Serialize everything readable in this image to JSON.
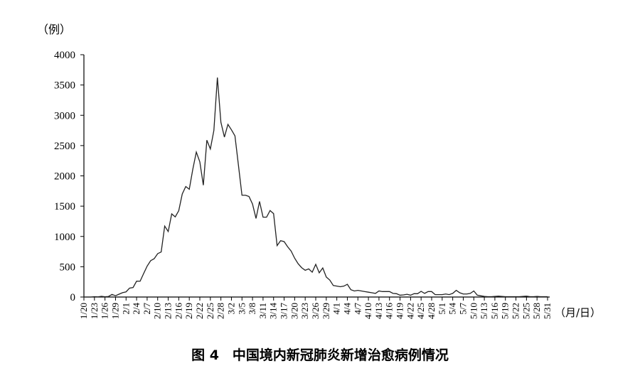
{
  "chart_data": {
    "type": "line",
    "title": "图 4　中国境内新冠肺炎新增治愈病例情况",
    "ylabel": "（例）",
    "xlabel": "（月/日）",
    "ylim": [
      0,
      4000
    ],
    "yticks": [
      0,
      500,
      1000,
      1500,
      2000,
      2500,
      3000,
      3500,
      4000
    ],
    "grid": false,
    "line_color": "#222222",
    "x_start": "1/20",
    "x_end": "5/31",
    "xtick_labels": [
      "1/20",
      "1/23",
      "1/26",
      "1/29",
      "2/1",
      "2/4",
      "2/7",
      "2/10",
      "2/13",
      "2/16",
      "2/19",
      "2/22",
      "2/25",
      "2/28",
      "3/2",
      "3/5",
      "3/8",
      "3/11",
      "3/14",
      "3/17",
      "3/20",
      "3/23",
      "3/26",
      "3/29",
      "4/1",
      "4/4",
      "4/7",
      "4/10",
      "4/13",
      "4/16",
      "4/19",
      "4/22",
      "4/25",
      "4/28",
      "5/1",
      "5/4",
      "5/7",
      "5/10",
      "5/13",
      "5/16",
      "5/19",
      "5/22",
      "5/25",
      "5/28",
      "5/31"
    ],
    "values": [
      0,
      0,
      0,
      6,
      3,
      11,
      4,
      9,
      43,
      21,
      47,
      72,
      85,
      147,
      157,
      262,
      261,
      387,
      510,
      600,
      632,
      716,
      744,
      1171,
      1081,
      1373,
      1323,
      1425,
      1701,
      1824,
      1779,
      2109,
      2393,
      2231,
      1846,
      2589,
      2444,
      2750,
      3622,
      2885,
      2640,
      2850,
      2760,
      2660,
      2173,
      1680,
      1680,
      1660,
      1535,
      1297,
      1578,
      1318,
      1318,
      1428,
      1377,
      849,
      930,
      915,
      830,
      759,
      641,
      549,
      484,
      441,
      464,
      410,
      540,
      400,
      480,
      330,
      280,
      190,
      180,
      170,
      180,
      210,
      120,
      100,
      110,
      100,
      90,
      80,
      70,
      60,
      100,
      90,
      90,
      90,
      60,
      55,
      30,
      35,
      45,
      30,
      55,
      55,
      94,
      60,
      90,
      90,
      40,
      40,
      40,
      50,
      40,
      60,
      110,
      70,
      50,
      50,
      60,
      100,
      30,
      20,
      10,
      5,
      5,
      10,
      15,
      10,
      5,
      5,
      5,
      5,
      5,
      10,
      15,
      5,
      5,
      10,
      5,
      5,
      5
    ]
  }
}
